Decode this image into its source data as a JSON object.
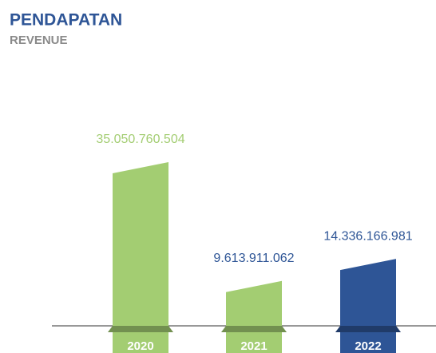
{
  "chart_data": {
    "type": "bar",
    "title": "PENDAPATAN",
    "subtitle": "REVENUE",
    "categories": [
      "2020",
      "2021",
      "2022"
    ],
    "values": [
      35050760504,
      9613911062,
      14336166981
    ],
    "value_labels": [
      "35.050.760.504",
      "9.613.911.062",
      "14.336.166.981"
    ],
    "colors": [
      "#a3cd72",
      "#a3cd72",
      "#2e5596"
    ],
    "value_label_colors": [
      "#a3cd72",
      "#2e5596",
      "#2e5596"
    ]
  }
}
